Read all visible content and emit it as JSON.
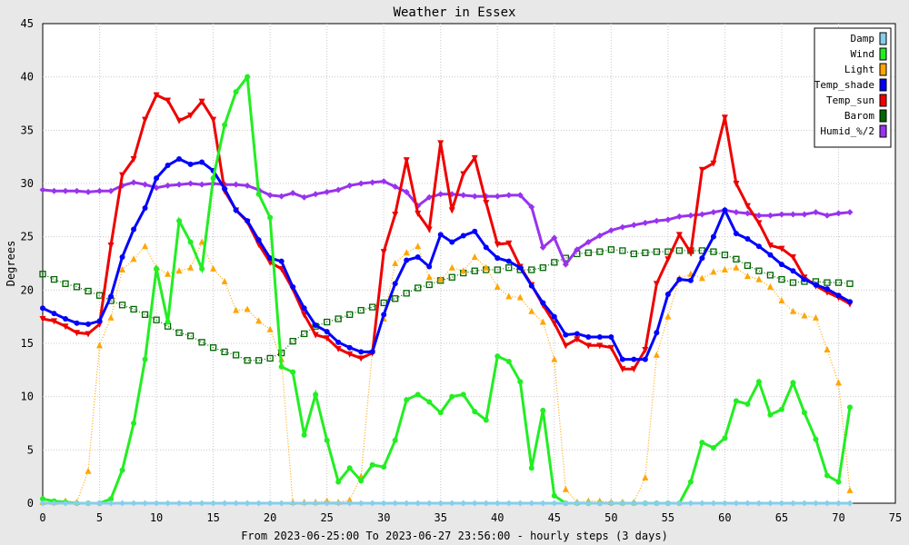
{
  "chart_data": {
    "type": "line",
    "title": "Weather in Essex",
    "xlabel": "From 2023-06-25:00 To 2023-06-27 23:56:00 - hourly steps (3 days)",
    "ylabel": "Degrees",
    "xlim": [
      0,
      75
    ],
    "ylim": [
      0,
      45
    ],
    "xticks": [
      0,
      5,
      10,
      15,
      20,
      25,
      30,
      35,
      40,
      45,
      50,
      55,
      60,
      65,
      70,
      75
    ],
    "yticks": [
      0,
      5,
      10,
      15,
      20,
      25,
      30,
      35,
      40,
      45
    ],
    "grid": true,
    "legend_position": "top-right",
    "x": [
      0,
      1,
      2,
      3,
      4,
      5,
      6,
      7,
      8,
      9,
      10,
      11,
      12,
      13,
      14,
      15,
      16,
      17,
      18,
      19,
      20,
      21,
      22,
      23,
      24,
      25,
      26,
      27,
      28,
      29,
      30,
      31,
      32,
      33,
      34,
      35,
      36,
      37,
      38,
      39,
      40,
      41,
      42,
      43,
      44,
      45,
      46,
      47,
      48,
      49,
      50,
      51,
      52,
      53,
      54,
      55,
      56,
      57,
      58,
      59,
      60,
      61,
      62,
      63,
      64,
      65,
      66,
      67,
      68,
      69,
      70,
      71
    ],
    "series": [
      {
        "name": "Damp",
        "color": "#87ceeb",
        "marker": "diamond",
        "style": "solid",
        "values": [
          0,
          0,
          0,
          0,
          0,
          0,
          0,
          0,
          0,
          0,
          0,
          0,
          0,
          0,
          0,
          0,
          0,
          0,
          0,
          0,
          0,
          0,
          0,
          0,
          0,
          0,
          0,
          0,
          0,
          0,
          0,
          0,
          0,
          0,
          0,
          0,
          0,
          0,
          0,
          0,
          0,
          0,
          0,
          0,
          0,
          0,
          0,
          0,
          0,
          0,
          0,
          0,
          0,
          0,
          0,
          0,
          0,
          0,
          0,
          0,
          0,
          0,
          0,
          0,
          0,
          0,
          0,
          0,
          0,
          0,
          0,
          0
        ]
      },
      {
        "name": "Wind",
        "color": "#22ee22",
        "marker": "circle",
        "style": "solid",
        "values": [
          0.4,
          0.2,
          0.1,
          0.0,
          0.0,
          0.0,
          0.4,
          3.1,
          7.5,
          13.5,
          22.0,
          17.0,
          26.5,
          24.5,
          22.0,
          30.5,
          35.5,
          38.6,
          40.0,
          29.0,
          26.8,
          12.8,
          12.3,
          6.4,
          10.2,
          5.9,
          2.0,
          3.3,
          2.1,
          3.6,
          3.4,
          5.9,
          9.7,
          10.2,
          9.5,
          8.5,
          10.0,
          10.2,
          8.6,
          7.8,
          13.8,
          13.3,
          11.4,
          3.3,
          8.7,
          0.7,
          0.0,
          0.0,
          0.0,
          0.0,
          0.0,
          0.0,
          0.0,
          0.0,
          0.0,
          0.0,
          0.0,
          2.0,
          5.7,
          5.2,
          6.1,
          9.6,
          9.3,
          11.4,
          8.3,
          8.8,
          11.3,
          8.5,
          6.0,
          2.6,
          2.0,
          9.0
        ]
      },
      {
        "name": "Light",
        "color": "#ffa500",
        "marker": "triangle-up",
        "style": "dotted",
        "values": [
          0.1,
          0.1,
          0.2,
          0.1,
          3.0,
          14.8,
          17.4,
          21.9,
          22.9,
          24.1,
          22.1,
          21.5,
          21.8,
          22.1,
          24.5,
          22.0,
          20.8,
          18.1,
          18.2,
          17.1,
          16.3,
          13.5,
          0.1,
          0.1,
          0.1,
          0.2,
          0.1,
          0.3,
          2.5,
          14.3,
          17.3,
          22.5,
          23.5,
          24.1,
          21.2,
          21.0,
          22.1,
          21.8,
          23.1,
          22.1,
          20.3,
          19.4,
          19.3,
          18.0,
          17.0,
          13.5,
          1.3,
          0.1,
          0.2,
          0.2,
          0.1,
          0.1,
          0.1,
          2.4,
          13.9,
          17.5,
          21.1,
          21.5,
          21.1,
          21.7,
          21.9,
          22.1,
          21.3,
          21.0,
          20.3,
          19.0,
          18.0,
          17.6,
          17.4,
          14.4,
          11.3,
          1.2
        ]
      },
      {
        "name": "Temp_shade",
        "color": "#0000ff",
        "marker": "circle",
        "style": "solid",
        "values": [
          18.3,
          17.8,
          17.3,
          16.9,
          16.8,
          17.1,
          19.4,
          23.1,
          25.7,
          27.7,
          30.5,
          31.7,
          32.3,
          31.8,
          32.0,
          31.2,
          29.5,
          27.5,
          26.5,
          24.7,
          23.0,
          22.7,
          20.3,
          18.3,
          16.7,
          16.1,
          15.1,
          14.6,
          14.2,
          14.2,
          17.7,
          20.6,
          22.8,
          23.1,
          22.2,
          25.2,
          24.5,
          25.1,
          25.5,
          24.0,
          23.0,
          22.7,
          22.1,
          20.4,
          18.8,
          17.5,
          15.8,
          15.9,
          15.6,
          15.6,
          15.6,
          13.5,
          13.5,
          13.5,
          16.0,
          19.6,
          21.0,
          20.9,
          23.0,
          25.0,
          27.5,
          25.3,
          24.8,
          24.1,
          23.3,
          22.4,
          21.8,
          21.0,
          20.5,
          20.1,
          19.5,
          18.9
        ]
      },
      {
        "name": "Temp_sun",
        "color": "#ee0000",
        "marker": "triangle-down",
        "style": "solid",
        "values": [
          17.3,
          17.1,
          16.6,
          16.0,
          15.9,
          16.8,
          24.2,
          30.8,
          32.3,
          36.0,
          38.3,
          37.8,
          35.9,
          36.4,
          37.7,
          36.0,
          29.3,
          27.5,
          26.4,
          24.3,
          22.6,
          22.0,
          20.1,
          17.7,
          15.8,
          15.5,
          14.5,
          14.0,
          13.6,
          14.1,
          23.6,
          27.1,
          32.2,
          27.2,
          25.7,
          33.8,
          27.5,
          30.9,
          32.4,
          28.2,
          24.3,
          24.4,
          22.2,
          20.5,
          18.6,
          16.9,
          14.8,
          15.4,
          14.8,
          14.8,
          14.6,
          12.6,
          12.6,
          14.4,
          20.6,
          22.9,
          25.2,
          23.5,
          31.3,
          31.9,
          36.2,
          30.0,
          27.9,
          26.3,
          24.2,
          23.9,
          23.1,
          21.2,
          20.4,
          19.8,
          19.3,
          18.7
        ]
      },
      {
        "name": "Barom",
        "color": "#006600",
        "marker": "square",
        "style": "dotted",
        "values": [
          21.5,
          21.0,
          20.6,
          20.3,
          19.9,
          19.5,
          19.0,
          18.6,
          18.2,
          17.7,
          17.2,
          16.6,
          16.0,
          15.7,
          15.1,
          14.6,
          14.2,
          13.9,
          13.4,
          13.4,
          13.6,
          14.1,
          15.2,
          15.9,
          16.6,
          17.0,
          17.3,
          17.7,
          18.1,
          18.4,
          18.8,
          19.2,
          19.7,
          20.2,
          20.5,
          20.9,
          21.2,
          21.6,
          21.8,
          21.9,
          21.9,
          22.1,
          21.9,
          21.9,
          22.1,
          22.6,
          23.0,
          23.4,
          23.5,
          23.6,
          23.8,
          23.7,
          23.4,
          23.5,
          23.6,
          23.6,
          23.7,
          23.7,
          23.7,
          23.6,
          23.3,
          22.9,
          22.3,
          21.8,
          21.4,
          21.0,
          20.7,
          20.8,
          20.8,
          20.7,
          20.7,
          20.6
        ]
      },
      {
        "name": "Humid_%/2",
        "color": "#9933ee",
        "marker": "diamond",
        "style": "solid",
        "values": [
          29.4,
          29.3,
          29.3,
          29.3,
          29.2,
          29.3,
          29.3,
          29.8,
          30.1,
          29.9,
          29.6,
          29.8,
          29.9,
          30.0,
          29.9,
          30.0,
          29.9,
          29.9,
          29.8,
          29.4,
          28.9,
          28.8,
          29.1,
          28.7,
          29.0,
          29.2,
          29.4,
          29.8,
          30.0,
          30.1,
          30.2,
          29.7,
          29.2,
          27.9,
          28.7,
          29.0,
          29.0,
          28.9,
          28.8,
          28.8,
          28.8,
          28.9,
          28.9,
          27.8,
          24.0,
          24.9,
          22.4,
          23.8,
          24.5,
          25.1,
          25.6,
          25.9,
          26.1,
          26.3,
          26.5,
          26.6,
          26.9,
          27.0,
          27.1,
          27.3,
          27.5,
          27.3,
          27.2,
          27.0,
          27.0,
          27.1,
          27.1,
          27.1,
          27.3,
          27.0,
          27.2,
          27.3
        ]
      }
    ]
  }
}
